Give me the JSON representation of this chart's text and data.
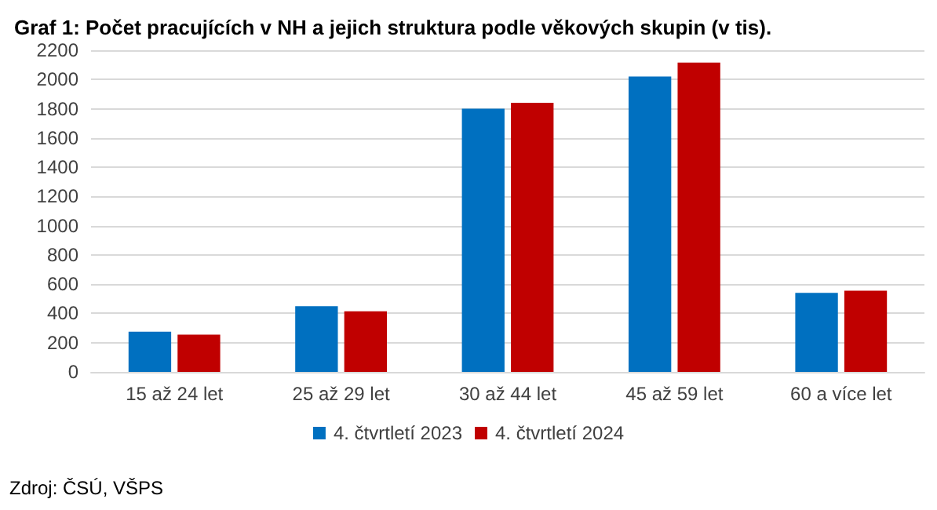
{
  "chart_data": {
    "type": "bar",
    "title": "Graf 1: Počet pracujících v NH a jejich struktura podle věkových skupin (v tis).",
    "categories": [
      "15 až 24 let",
      "25 až 29 let",
      "30 až 44 let",
      "45 až 59 let",
      "60 a více let"
    ],
    "series": [
      {
        "name": "4. čtvrtletí 2023",
        "color": "#0070c0",
        "values": [
          275,
          450,
          1800,
          2020,
          540
        ]
      },
      {
        "name": "4. čtvrtletí 2024",
        "color": "#c00000",
        "values": [
          255,
          415,
          1840,
          2115,
          555
        ]
      }
    ],
    "ylim": [
      0,
      2200
    ],
    "yticks": [
      0,
      200,
      400,
      600,
      800,
      1000,
      1200,
      1400,
      1600,
      1800,
      2000,
      2200
    ],
    "grid": "y",
    "legend": "bottom",
    "annotations": [
      "Zdroj: ČSÚ, VŠPS"
    ]
  }
}
